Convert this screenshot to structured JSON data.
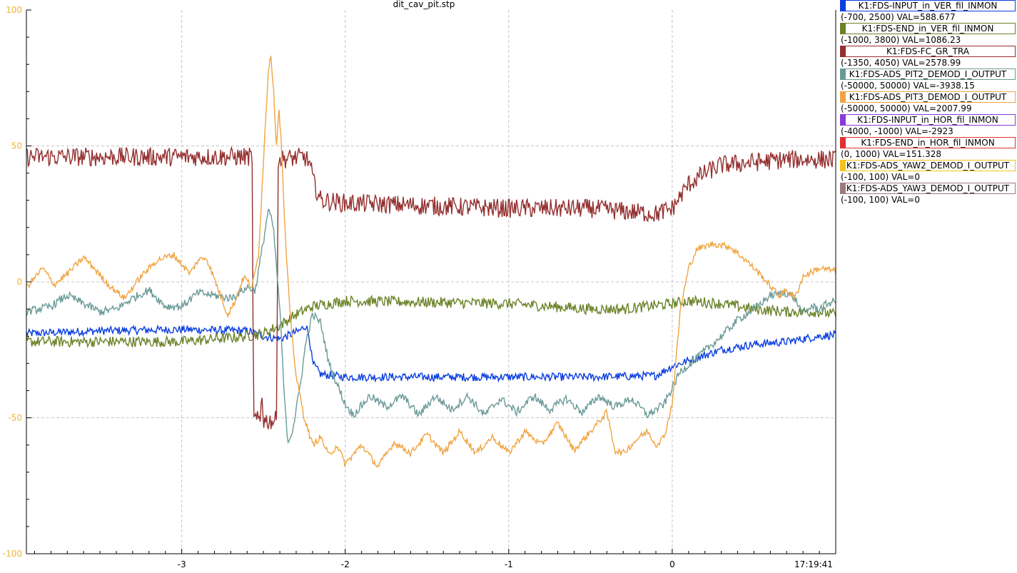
{
  "chart_data": {
    "type": "line",
    "title": "dit_cav_pit.stp",
    "xlim": [
      -3.95,
      1.0
    ],
    "ylim": [
      -100,
      100
    ],
    "x_ticks": [
      -3,
      -2,
      -1,
      0
    ],
    "y_ticks": [
      100,
      50,
      0,
      -50,
      -100
    ],
    "grid": true,
    "timestamp": "17:19:41",
    "legend_position": "right",
    "series": [
      {
        "name": "K1:FDS-INPUT_in_VER_fil_INMON",
        "range": "(-700, 2500) VAL=588.677",
        "color": "#0b3fe0",
        "noise": 1.5,
        "points": [
          [
            -3.95,
            -19
          ],
          [
            -3.5,
            -18
          ],
          [
            -3.0,
            -17.5
          ],
          [
            -2.6,
            -18
          ],
          [
            -2.5,
            -20
          ],
          [
            -2.4,
            -21
          ],
          [
            -2.28,
            -18
          ],
          [
            -2.24,
            -16
          ],
          [
            -2.22,
            -20
          ],
          [
            -2.2,
            -30
          ],
          [
            -2.15,
            -34
          ],
          [
            -2.0,
            -35
          ],
          [
            -1.5,
            -35
          ],
          [
            -1.0,
            -35
          ],
          [
            -0.5,
            -35
          ],
          [
            -0.1,
            -34.5
          ],
          [
            0.0,
            -31
          ],
          [
            0.1,
            -29
          ],
          [
            0.3,
            -25
          ],
          [
            0.5,
            -23
          ],
          [
            0.7,
            -22
          ],
          [
            0.9,
            -20
          ],
          [
            1.0,
            -19.5
          ]
        ]
      },
      {
        "name": "K1:FDS-END_in_VER_fil_INMON",
        "range": "(-1000, 3800) VAL=1086.23",
        "color": "#6b8228",
        "noise": 2.0,
        "points": [
          [
            -3.95,
            -22
          ],
          [
            -3.5,
            -22
          ],
          [
            -3.0,
            -22
          ],
          [
            -2.8,
            -21
          ],
          [
            -2.6,
            -20
          ],
          [
            -2.5,
            -19
          ],
          [
            -2.4,
            -16
          ],
          [
            -2.3,
            -12
          ],
          [
            -2.2,
            -9
          ],
          [
            -2.1,
            -8
          ],
          [
            -2.0,
            -7
          ],
          [
            -1.5,
            -7.5
          ],
          [
            -1.0,
            -8
          ],
          [
            -0.5,
            -10
          ],
          [
            -0.3,
            -10
          ],
          [
            0.0,
            -8
          ],
          [
            0.1,
            -7
          ],
          [
            0.3,
            -8
          ],
          [
            0.5,
            -10
          ],
          [
            0.7,
            -11
          ],
          [
            0.9,
            -11
          ],
          [
            1.0,
            -12
          ]
        ]
      },
      {
        "name": "K1:FDS-FC_GR_TRA",
        "range": "(-1350, 4050) VAL=2578.99",
        "color": "#942f2f",
        "noise": 3.5,
        "points": [
          [
            -3.95,
            46
          ],
          [
            -3.0,
            46
          ],
          [
            -2.57,
            46
          ],
          [
            -2.56,
            -51
          ],
          [
            -2.52,
            -51
          ],
          [
            -2.51,
            -40
          ],
          [
            -2.5,
            -51
          ],
          [
            -2.42,
            -51
          ],
          [
            -2.41,
            45
          ],
          [
            -2.25,
            46
          ],
          [
            -2.22,
            44
          ],
          [
            -2.19,
            36
          ],
          [
            -2.15,
            30
          ],
          [
            -2.0,
            29
          ],
          [
            -1.5,
            28
          ],
          [
            -1.0,
            27
          ],
          [
            -0.5,
            27
          ],
          [
            -0.1,
            25
          ],
          [
            0.0,
            27
          ],
          [
            0.1,
            36
          ],
          [
            0.2,
            40
          ],
          [
            0.3,
            43
          ],
          [
            0.5,
            44
          ],
          [
            0.7,
            45
          ],
          [
            0.9,
            45
          ],
          [
            1.0,
            45
          ]
        ]
      },
      {
        "name": "K1:FDS-ADS_PIT2_DEMOD_I_OUTPUT",
        "range": "(-50000, 50000) VAL=-3938.15",
        "color": "#6a9a98",
        "noise": 1.5,
        "points": [
          [
            -3.95,
            -11
          ],
          [
            -3.8,
            -9
          ],
          [
            -3.7,
            -5
          ],
          [
            -3.6,
            -8
          ],
          [
            -3.5,
            -11
          ],
          [
            -3.4,
            -10
          ],
          [
            -3.3,
            -6
          ],
          [
            -3.2,
            -3
          ],
          [
            -3.1,
            -9
          ],
          [
            -3.0,
            -9
          ],
          [
            -2.9,
            -4
          ],
          [
            -2.8,
            -5
          ],
          [
            -2.7,
            -6
          ],
          [
            -2.6,
            -2
          ],
          [
            -2.55,
            -3
          ],
          [
            -2.5,
            15
          ],
          [
            -2.47,
            27
          ],
          [
            -2.44,
            20
          ],
          [
            -2.4,
            -10
          ],
          [
            -2.37,
            -45
          ],
          [
            -2.35,
            -59
          ],
          [
            -2.32,
            -54
          ],
          [
            -2.28,
            -40
          ],
          [
            -2.24,
            -22
          ],
          [
            -2.2,
            -12
          ],
          [
            -2.15,
            -15
          ],
          [
            -2.1,
            -30
          ],
          [
            -2.0,
            -45
          ],
          [
            -1.95,
            -49
          ],
          [
            -1.85,
            -42
          ],
          [
            -1.75,
            -46
          ],
          [
            -1.65,
            -42
          ],
          [
            -1.55,
            -49
          ],
          [
            -1.45,
            -42
          ],
          [
            -1.35,
            -47
          ],
          [
            -1.25,
            -42
          ],
          [
            -1.15,
            -49
          ],
          [
            -1.05,
            -43
          ],
          [
            -0.95,
            -48
          ],
          [
            -0.85,
            -42
          ],
          [
            -0.75,
            -47
          ],
          [
            -0.65,
            -43
          ],
          [
            -0.55,
            -48
          ],
          [
            -0.45,
            -42
          ],
          [
            -0.35,
            -46
          ],
          [
            -0.25,
            -43
          ],
          [
            -0.15,
            -49
          ],
          [
            -0.05,
            -45
          ],
          [
            0.05,
            -33
          ],
          [
            0.15,
            -28
          ],
          [
            0.3,
            -20
          ],
          [
            0.4,
            -14
          ],
          [
            0.5,
            -10
          ],
          [
            0.6,
            -5
          ],
          [
            0.7,
            -4
          ],
          [
            0.75,
            -6
          ],
          [
            0.8,
            -12
          ],
          [
            0.85,
            -9
          ],
          [
            0.9,
            -10
          ],
          [
            0.95,
            -8
          ],
          [
            1.0,
            -7
          ]
        ]
      },
      {
        "name": "K1:FDS-ADS_PIT3_DEMOD_I_OUTPUT",
        "range": "(-50000, 50000) VAL=2007.99",
        "color": "#f0a442",
        "noise": 1.2,
        "points": [
          [
            -3.95,
            -2
          ],
          [
            -3.85,
            5
          ],
          [
            -3.78,
            -1
          ],
          [
            -3.7,
            3
          ],
          [
            -3.6,
            9
          ],
          [
            -3.55,
            6
          ],
          [
            -3.45,
            -1
          ],
          [
            -3.35,
            -6
          ],
          [
            -3.25,
            2
          ],
          [
            -3.15,
            8
          ],
          [
            -3.05,
            10
          ],
          [
            -2.95,
            3
          ],
          [
            -2.9,
            8
          ],
          [
            -2.85,
            9
          ],
          [
            -2.8,
            1
          ],
          [
            -2.75,
            -7
          ],
          [
            -2.72,
            -12
          ],
          [
            -2.68,
            -8
          ],
          [
            -2.62,
            2
          ],
          [
            -2.57,
            -2
          ],
          [
            -2.53,
            10
          ],
          [
            -2.5,
            45
          ],
          [
            -2.47,
            78
          ],
          [
            -2.455,
            84
          ],
          [
            -2.44,
            72
          ],
          [
            -2.42,
            50
          ],
          [
            -2.405,
            64
          ],
          [
            -2.39,
            50
          ],
          [
            -2.37,
            20
          ],
          [
            -2.34,
            -10
          ],
          [
            -2.3,
            -35
          ],
          [
            -2.25,
            -50
          ],
          [
            -2.2,
            -60
          ],
          [
            -2.15,
            -57
          ],
          [
            -2.1,
            -64
          ],
          [
            -2.05,
            -60
          ],
          [
            -2.0,
            -67
          ],
          [
            -1.9,
            -60
          ],
          [
            -1.8,
            -68
          ],
          [
            -1.7,
            -59
          ],
          [
            -1.6,
            -63
          ],
          [
            -1.5,
            -56
          ],
          [
            -1.4,
            -63
          ],
          [
            -1.3,
            -55
          ],
          [
            -1.2,
            -63
          ],
          [
            -1.1,
            -57
          ],
          [
            -1.0,
            -63
          ],
          [
            -0.9,
            -55
          ],
          [
            -0.8,
            -60
          ],
          [
            -0.7,
            -52
          ],
          [
            -0.6,
            -62
          ],
          [
            -0.5,
            -55
          ],
          [
            -0.4,
            -48
          ],
          [
            -0.35,
            -62
          ],
          [
            -0.3,
            -63
          ],
          [
            -0.2,
            -57
          ],
          [
            -0.15,
            -55
          ],
          [
            -0.1,
            -60
          ],
          [
            -0.05,
            -57
          ],
          [
            0.0,
            -45
          ],
          [
            0.05,
            -10
          ],
          [
            0.1,
            5
          ],
          [
            0.15,
            12
          ],
          [
            0.25,
            14
          ],
          [
            0.35,
            13
          ],
          [
            0.45,
            8
          ],
          [
            0.55,
            2
          ],
          [
            0.65,
            -5
          ],
          [
            0.7,
            -3
          ],
          [
            0.75,
            -6
          ],
          [
            0.8,
            2
          ],
          [
            0.9,
            5
          ],
          [
            1.0,
            4
          ]
        ]
      }
    ],
    "inactive_series": [
      {
        "name": "K1:FDS-INPUT_in_HOR_fil_INMON",
        "range": "(-4000, -1000) VAL=-2923",
        "color": "#8a3ad8"
      },
      {
        "name": "K1:FDS-END_in_HOR_fil_INMON",
        "range": "(0, 1000) VAL=151.328",
        "color": "#e03030"
      },
      {
        "name": "K1:FDS-ADS_YAW2_DEMOD_I_OUTPUT",
        "range": "(-100, 100)  VAL=0",
        "color": "#f2c31a"
      },
      {
        "name": "K1:FDS-ADS_YAW3_DEMOD_I_OUTPUT",
        "range": "(-100, 100)  VAL=0",
        "color": "#a07a7a"
      }
    ]
  }
}
